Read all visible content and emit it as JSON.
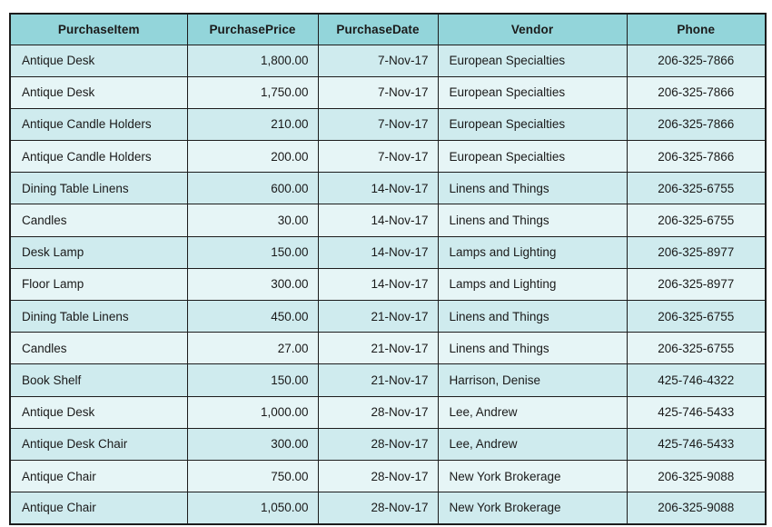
{
  "colors": {
    "header_bg": "#93d5da",
    "row_odd_bg": "#cfebee",
    "row_even_bg": "#e6f5f6",
    "border": "#1c1c1c",
    "text": "#1a1a1a"
  },
  "table": {
    "columns": [
      {
        "label": "PurchaseItem",
        "align": "left"
      },
      {
        "label": "PurchasePrice",
        "align": "right"
      },
      {
        "label": "PurchaseDate",
        "align": "right"
      },
      {
        "label": "Vendor",
        "align": "left"
      },
      {
        "label": "Phone",
        "align": "center"
      }
    ],
    "rows": [
      [
        "Antique Desk",
        "1,800.00",
        "7-Nov-17",
        "European Specialties",
        "206-325-7866"
      ],
      [
        "Antique Desk",
        "1,750.00",
        "7-Nov-17",
        "European Specialties",
        "206-325-7866"
      ],
      [
        "Antique Candle Holders",
        "210.00",
        "7-Nov-17",
        "European Specialties",
        "206-325-7866"
      ],
      [
        "Antique Candle Holders",
        "200.00",
        "7-Nov-17",
        "European Specialties",
        "206-325-7866"
      ],
      [
        "Dining Table Linens",
        "600.00",
        "14-Nov-17",
        "Linens and Things",
        "206-325-6755"
      ],
      [
        "Candles",
        "30.00",
        "14-Nov-17",
        "Linens and Things",
        "206-325-6755"
      ],
      [
        "Desk Lamp",
        "150.00",
        "14-Nov-17",
        "Lamps and Lighting",
        "206-325-8977"
      ],
      [
        "Floor Lamp",
        "300.00",
        "14-Nov-17",
        "Lamps and Lighting",
        "206-325-8977"
      ],
      [
        "Dining Table Linens",
        "450.00",
        "21-Nov-17",
        "Linens and Things",
        "206-325-6755"
      ],
      [
        "Candles",
        "27.00",
        "21-Nov-17",
        "Linens and Things",
        "206-325-6755"
      ],
      [
        "Book Shelf",
        "150.00",
        "21-Nov-17",
        "Harrison, Denise",
        "425-746-4322"
      ],
      [
        "Antique Desk",
        "1,000.00",
        "28-Nov-17",
        "Lee, Andrew",
        "425-746-5433"
      ],
      [
        "Antique Desk Chair",
        "300.00",
        "28-Nov-17",
        "Lee, Andrew",
        "425-746-5433"
      ],
      [
        "Antique Chair",
        "750.00",
        "28-Nov-17",
        "New York Brokerage",
        "206-325-9088"
      ],
      [
        "Antique Chair",
        "1,050.00",
        "28-Nov-17",
        "New York Brokerage",
        "206-325-9088"
      ]
    ]
  }
}
